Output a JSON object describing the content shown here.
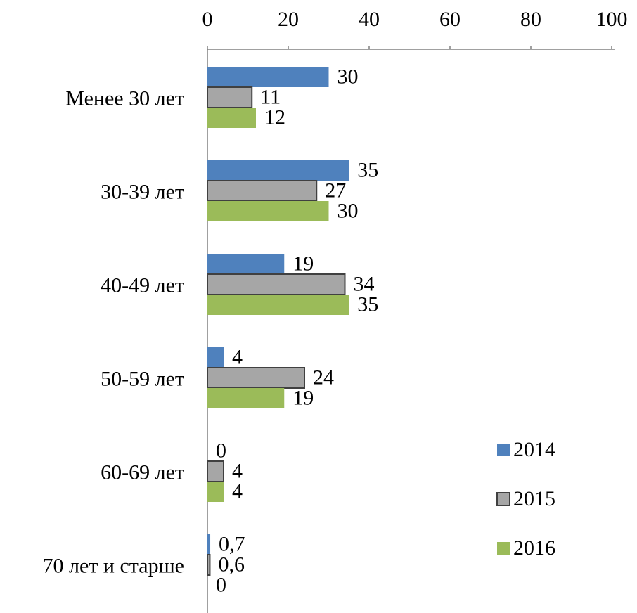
{
  "chart_data": {
    "type": "hbar",
    "categories": [
      "Менее 30 лет",
      "30-39 лет",
      "40-49 лет",
      "50-59 лет",
      "60-69 лет",
      "70 лет и старше"
    ],
    "series": [
      {
        "name": "2014",
        "color": "#4f81bd",
        "values": [
          30,
          35,
          19,
          4,
          0,
          0.7
        ],
        "value_labels": [
          "30",
          "35",
          "19",
          "4",
          "0",
          "0,7"
        ]
      },
      {
        "name": "2015",
        "color": "#a6a6a6",
        "values": [
          11,
          27,
          34,
          24,
          4,
          0.6
        ],
        "value_labels": [
          "11",
          "27",
          "34",
          "24",
          "4",
          "0,6"
        ]
      },
      {
        "name": "2016",
        "color": "#9bbb59",
        "values": [
          12,
          30,
          35,
          19,
          4,
          0
        ],
        "value_labels": [
          "12",
          "30",
          "35",
          "19",
          "4",
          "0"
        ]
      }
    ],
    "xlim": [
      0,
      100
    ],
    "xticks": [
      0,
      20,
      40,
      60,
      80,
      100
    ],
    "legend": "right",
    "grid": false
  }
}
